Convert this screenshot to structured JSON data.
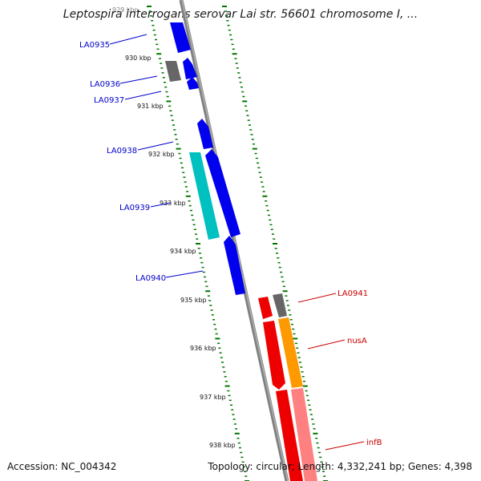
{
  "title": "Leptospira interrogans serovar Lai str. 56601 chromosome I, ...",
  "accession_text": "Accession: NC_004342",
  "summary_text": "Topology: circular; Length: 4,332,241 bp; Genes: 4,398",
  "top_tick_label": "929 kbp",
  "kbp_labels": [
    "930 kbp",
    "931 kbp",
    "932 kbp",
    "933 kbp",
    "934 kbp",
    "935 kbp",
    "936 kbp",
    "937 kbp",
    "938 kbp"
  ],
  "genes_left": [
    {
      "label": "LA0935",
      "color": "#0000ee"
    },
    {
      "label": "LA0936",
      "color": "#0000ee"
    },
    {
      "label": "LA0937",
      "color": "#0000ee"
    },
    {
      "label": "LA0938",
      "color": "#0000ee"
    },
    {
      "label": "LA0939",
      "color": "#00c0c0"
    },
    {
      "label": "LA0940",
      "color": "#0000ee"
    }
  ],
  "genes_right": [
    {
      "label": "LA0941",
      "color": "#666666"
    },
    {
      "label": "nusA",
      "color": "#ff9900"
    },
    {
      "label": "infB",
      "color": "#ff8080"
    }
  ],
  "colors": {
    "cds_forward": "#0000ee",
    "cds_reverse": "#ee0000",
    "rna": "#00c0c0",
    "backbone": "#888888",
    "tick": "#007700"
  }
}
